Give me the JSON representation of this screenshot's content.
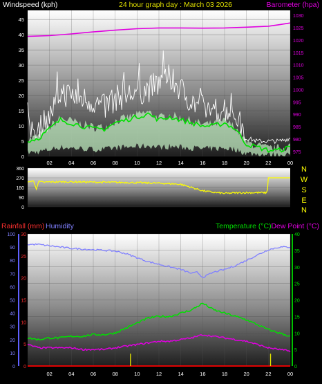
{
  "header": {
    "windspeed_label": "Windspeed (kph)",
    "title": "24 hour graph day : March 03 2026",
    "barometer_label": "Barometer (hpa)"
  },
  "panel3_header": {
    "rainfall_label": "Rainfall (mm)",
    "humidity_label": "Humidity",
    "temperature_label": "Temperature (°C)",
    "dewpoint_label": "Dew Point (°C)"
  },
  "colors": {
    "wind_gust": "#ffffff",
    "wind_avg": "#00e000",
    "wind_band": "#c8f5c8",
    "barometer": "#e000e0",
    "direction": "#ffff00",
    "humidity": "#8080ff",
    "temperature": "#00e000",
    "dewpoint": "#e000e0",
    "rainfall": "#ff0000",
    "rain_rate": "#e0e000",
    "compass": "#ffff00"
  },
  "compass": [
    "N",
    "W",
    "S",
    "E",
    "N"
  ],
  "chart_data": [
    {
      "type": "line",
      "panel": "wind-barometer",
      "x_ticks": [
        "02",
        "04",
        "06",
        "08",
        "10",
        "12",
        "14",
        "16",
        "18",
        "20",
        "22",
        "00"
      ],
      "y_left": {
        "ticks": [
          0,
          5,
          10,
          15,
          20,
          25,
          30,
          35,
          40,
          45
        ],
        "ylim": [
          0,
          48
        ]
      },
      "y_right": {
        "ticks": [
          975,
          980,
          985,
          990,
          995,
          1000,
          1005,
          1010,
          1015,
          1020,
          1025,
          1030
        ],
        "ylim": [
          973,
          1032
        ]
      },
      "series": [
        {
          "axis": "left",
          "x": [
            0,
            1,
            2,
            3,
            4,
            5,
            6,
            7,
            8,
            9,
            10,
            11,
            12,
            13,
            14,
            15,
            16,
            17,
            18,
            19,
            20,
            21,
            22,
            23,
            24
          ],
          "values": [
            9,
            10,
            13,
            21,
            20,
            19,
            18,
            16,
            19,
            20,
            21,
            22,
            24,
            26,
            22,
            18,
            16,
            15,
            16,
            14,
            6,
            5,
            5,
            5,
            6
          ]
        },
        {
          "axis": "left",
          "x": [
            0,
            1,
            2,
            3,
            4,
            5,
            6,
            7,
            8,
            9,
            10,
            11,
            12,
            13,
            14,
            15,
            16,
            17,
            18,
            19,
            20,
            21,
            22,
            23,
            24
          ],
          "values": [
            5,
            6,
            9,
            12,
            11,
            10,
            9,
            9,
            11,
            12,
            13,
            14,
            12,
            13,
            12,
            11,
            10,
            10,
            11,
            9,
            4,
            3,
            2,
            2,
            3
          ]
        },
        {
          "axis": "right",
          "x": [
            0,
            2,
            4,
            6,
            8,
            10,
            12,
            14,
            16,
            18,
            20,
            22,
            23,
            24
          ],
          "values": [
            1021.5,
            1021.8,
            1022.5,
            1023.3,
            1024.0,
            1024.6,
            1024.9,
            1024.9,
            1024.8,
            1024.9,
            1025.2,
            1025.6,
            1026.2,
            1026.9
          ]
        }
      ]
    },
    {
      "type": "line",
      "panel": "wind-direction",
      "y_ticks": [
        0,
        90,
        180,
        270,
        360
      ],
      "ylim": [
        0,
        360
      ],
      "series": [
        {
          "x": [
            0,
            0.5,
            0.8,
            1.0,
            1.5,
            2,
            4,
            6,
            8,
            10,
            12,
            14,
            15,
            16,
            17,
            18,
            19,
            20,
            21,
            21.9,
            22,
            24
          ],
          "values": [
            230,
            245,
            170,
            235,
            228,
            232,
            233,
            230,
            228,
            225,
            220,
            210,
            180,
            150,
            135,
            125,
            130,
            132,
            132,
            132,
            270,
            270
          ]
        }
      ]
    },
    {
      "type": "line",
      "panel": "temp-humidity-rain",
      "x_ticks": [
        "02",
        "04",
        "06",
        "08",
        "10",
        "12",
        "14",
        "16",
        "18",
        "20",
        "22",
        "00"
      ],
      "y_humidity": {
        "ticks": [
          0,
          10,
          20,
          30,
          40,
          50,
          60,
          70,
          80,
          90,
          100
        ],
        "ylim": [
          0,
          100
        ]
      },
      "y_rain": {
        "ticks": [
          0,
          5,
          10,
          15,
          20,
          25,
          30
        ],
        "ylim": [
          0,
          30
        ]
      },
      "y_temp": {
        "ticks": [
          0,
          5,
          10,
          15,
          20,
          25,
          30,
          35,
          40
        ],
        "ylim": [
          0,
          40
        ]
      },
      "series": [
        {
          "axis": "humidity",
          "x": [
            0,
            1,
            2,
            4,
            6,
            8,
            9,
            10,
            11,
            12,
            13,
            14,
            15,
            15.5,
            16,
            16.5,
            17,
            18,
            19,
            20,
            21,
            22,
            23,
            24
          ],
          "values": [
            92,
            92,
            91,
            89,
            88,
            87,
            85,
            82,
            79,
            77,
            75,
            73,
            70,
            71,
            67,
            69,
            71,
            73,
            76,
            80,
            84,
            88,
            90,
            90
          ]
        },
        {
          "axis": "temp",
          "x": [
            0,
            1,
            2,
            3,
            4,
            5,
            6,
            7,
            8,
            9,
            10,
            11,
            12,
            13,
            14,
            15,
            16,
            17,
            18,
            19,
            20,
            21,
            22,
            23,
            24
          ],
          "values": [
            8.5,
            8,
            8.5,
            8.5,
            9,
            9,
            9.5,
            9.5,
            10,
            11.5,
            13,
            14.5,
            15,
            15,
            16,
            17,
            19,
            17,
            16,
            15,
            14,
            12.5,
            11,
            10,
            9
          ]
        },
        {
          "axis": "temp",
          "x": [
            0,
            1,
            2,
            3,
            4,
            5,
            6,
            7,
            8,
            9,
            10,
            11,
            12,
            13,
            14,
            15,
            16,
            17,
            18,
            19,
            20,
            21,
            22,
            23,
            24
          ],
          "values": [
            6.5,
            5.5,
            5.5,
            5.5,
            5.5,
            5,
            5,
            5,
            5.5,
            6,
            6.5,
            7,
            7.5,
            7.5,
            8,
            8.5,
            9.5,
            9,
            8.5,
            8,
            7.5,
            6.5,
            5.5,
            5,
            4.5
          ]
        },
        {
          "axis": "rain",
          "x": [
            0,
            24
          ],
          "values": [
            0,
            0
          ]
        },
        {
          "axis": "rain",
          "x": [
            9.4,
            22.2
          ],
          "values": [
            2.8,
            2.8
          ]
        }
      ]
    }
  ]
}
